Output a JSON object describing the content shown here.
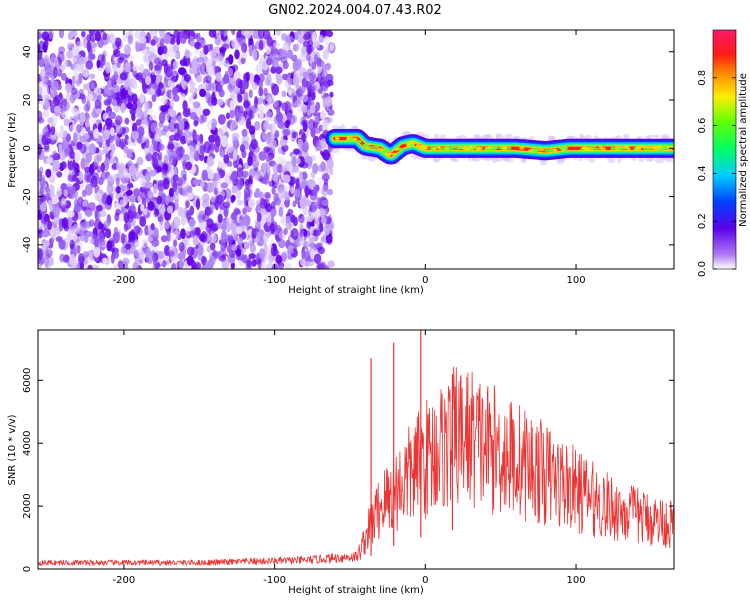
{
  "title": "GN02.2024.004.07.43.R02",
  "chart_data": [
    {
      "type": "heatmap",
      "xlabel": "Height of straight line (km)",
      "ylabel": "Frequency (Hz)",
      "xlim": [
        -257,
        165
      ],
      "ylim": [
        -50,
        49
      ],
      "x_ticks": [
        -200,
        -100,
        0,
        100
      ],
      "x_tick_labels": [
        "-200",
        "-100",
        "0",
        "100"
      ],
      "y_ticks": [
        -40,
        -20,
        0,
        20,
        40
      ],
      "y_tick_labels": [
        "-40",
        "-20",
        "0",
        "20",
        "40"
      ],
      "colorbar": {
        "label": "Normalized spectral amplitude",
        "range": [
          0,
          1
        ],
        "ticks": [
          0,
          0.2,
          0.4,
          0.6,
          0.8
        ],
        "tick_labels": [
          "0.0",
          "0.2",
          "0.4",
          "0.6",
          "0.8"
        ]
      },
      "noise_region_x": [
        -257,
        -62
      ],
      "signal_trace": [
        {
          "x": -60,
          "y": 4
        },
        {
          "x": -45,
          "y": 4
        },
        {
          "x": -40,
          "y": 1
        },
        {
          "x": -30,
          "y": 0
        },
        {
          "x": -23,
          "y": -3
        },
        {
          "x": -15,
          "y": 1
        },
        {
          "x": -8,
          "y": 2
        },
        {
          "x": 0,
          "y": 0
        },
        {
          "x": 60,
          "y": 0
        },
        {
          "x": 80,
          "y": -1
        },
        {
          "x": 95,
          "y": 0
        },
        {
          "x": 165,
          "y": 0
        }
      ],
      "grid": false
    },
    {
      "type": "line",
      "xlabel": "Height of straight line (km)",
      "ylabel": "SNR (10 * v/v)",
      "xlim": [
        -257,
        165
      ],
      "ylim": [
        0,
        7600
      ],
      "x_ticks": [
        -200,
        -100,
        0,
        100
      ],
      "x_tick_labels": [
        "-200",
        "-100",
        "0",
        "100"
      ],
      "y_ticks": [
        0,
        2000,
        4000,
        6000
      ],
      "y_tick_labels": [
        "0",
        "2000",
        "4000",
        "6000"
      ],
      "series": [
        {
          "color": "#ee3333",
          "envelope": [
            {
              "x": -257,
              "y": 200
            },
            {
              "x": -150,
              "y": 200
            },
            {
              "x": -80,
              "y": 280
            },
            {
              "x": -45,
              "y": 400
            },
            {
              "x": -38,
              "y": 1200
            },
            {
              "x": -30,
              "y": 2000
            },
            {
              "x": -20,
              "y": 2500
            },
            {
              "x": -10,
              "y": 3000
            },
            {
              "x": 0,
              "y": 3500
            },
            {
              "x": 20,
              "y": 4200
            },
            {
              "x": 30,
              "y": 4200
            },
            {
              "x": 40,
              "y": 3900
            },
            {
              "x": 60,
              "y": 3500
            },
            {
              "x": 80,
              "y": 3000
            },
            {
              "x": 100,
              "y": 2500
            },
            {
              "x": 120,
              "y": 2000
            },
            {
              "x": 140,
              "y": 1700
            },
            {
              "x": 165,
              "y": 1400
            }
          ],
          "spikes": [
            {
              "x": -36,
              "y": 6700
            },
            {
              "x": -21,
              "y": 7200
            },
            {
              "x": -3,
              "y": 7600
            },
            {
              "x": 18,
              "y": 6200
            }
          ]
        }
      ],
      "grid": false
    }
  ]
}
